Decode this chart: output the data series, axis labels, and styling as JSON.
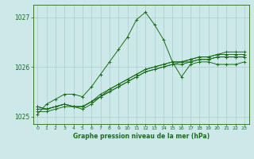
{
  "bg_color": "#cce8e8",
  "grid_color": "#aacccc",
  "line_color": "#1a6e1a",
  "marker_color": "#1a6e1a",
  "xlabel": "Graphe pression niveau de la mer (hPa)",
  "xlabel_color": "#1a6e1a",
  "tick_color": "#1a6e1a",
  "xlim": [
    -0.5,
    23.5
  ],
  "ylim": [
    1024.85,
    1027.25
  ],
  "yticks": [
    1025,
    1026,
    1027
  ],
  "xticks": [
    0,
    1,
    2,
    3,
    4,
    5,
    6,
    7,
    8,
    9,
    10,
    11,
    12,
    13,
    14,
    15,
    16,
    17,
    18,
    19,
    20,
    21,
    22,
    23
  ],
  "series": [
    [
      1025.05,
      1025.25,
      1025.35,
      1025.45,
      1025.45,
      1025.4,
      1025.6,
      1025.85,
      1026.1,
      1026.35,
      1026.6,
      1026.95,
      1027.1,
      1026.85,
      1026.55,
      1026.1,
      1025.8,
      1026.05,
      1026.1,
      1026.1,
      1026.05,
      1026.05,
      1026.05,
      1026.1
    ],
    [
      1025.2,
      1025.15,
      1025.2,
      1025.25,
      1025.2,
      1025.2,
      1025.3,
      1025.4,
      1025.5,
      1025.6,
      1025.7,
      1025.8,
      1025.9,
      1025.95,
      1026.0,
      1026.05,
      1026.1,
      1026.1,
      1026.15,
      1026.15,
      1026.2,
      1026.2,
      1026.2,
      1026.2
    ],
    [
      1025.2,
      1025.15,
      1025.2,
      1025.25,
      1025.2,
      1025.2,
      1025.3,
      1025.45,
      1025.55,
      1025.65,
      1025.75,
      1025.85,
      1025.95,
      1026.0,
      1026.05,
      1026.1,
      1026.1,
      1026.15,
      1026.2,
      1026.2,
      1026.25,
      1026.25,
      1026.25,
      1026.25
    ],
    [
      1025.15,
      1025.15,
      1025.2,
      1025.25,
      1025.2,
      1025.2,
      1025.3,
      1025.4,
      1025.55,
      1025.65,
      1025.75,
      1025.85,
      1025.95,
      1026.0,
      1026.05,
      1026.1,
      1026.1,
      1026.15,
      1026.2,
      1026.2,
      1026.25,
      1026.3,
      1026.3,
      1026.3
    ],
    [
      1025.1,
      1025.1,
      1025.15,
      1025.2,
      1025.2,
      1025.15,
      1025.25,
      1025.4,
      1025.5,
      1025.6,
      1025.7,
      1025.8,
      1025.9,
      1025.95,
      1026.0,
      1026.05,
      1026.05,
      1026.1,
      1026.15,
      1026.15,
      1026.2,
      1026.2,
      1026.2,
      1026.2
    ]
  ]
}
